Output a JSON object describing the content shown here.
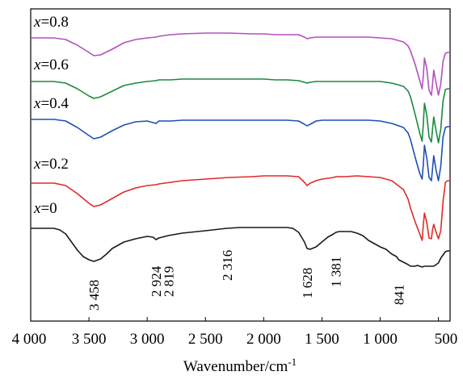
{
  "chart_data": {
    "type": "line",
    "xlabel": "Wavenumber/cm",
    "xlabel_sup": "-1",
    "xlim": [
      4000,
      400
    ],
    "x_ticks": [
      4000,
      3500,
      3000,
      2500,
      2000,
      1500,
      1000,
      500
    ],
    "x_tick_labels": [
      "4 000",
      "3 500",
      "3 000",
      "2 500",
      "2 000",
      "1 500",
      "1 000",
      "500"
    ],
    "ylabel": "",
    "grid": false,
    "legend": "none",
    "series": [
      {
        "name": "x=0.8",
        "label_var": "x",
        "label_val": "=0.8",
        "color": "#b34fc0",
        "baseline": 47,
        "x": [
          4000,
          3800,
          3700,
          3600,
          3500,
          3458,
          3400,
          3300,
          3200,
          3100,
          3000,
          2924,
          2900,
          2800,
          2700,
          2500,
          2300,
          2100,
          2000,
          1900,
          1800,
          1700,
          1650,
          1628,
          1600,
          1550,
          1500,
          1450,
          1400,
          1381,
          1300,
          1200,
          1100,
          1000,
          900,
          800,
          760,
          740,
          700,
          660,
          640,
          630,
          620,
          600,
          580,
          560,
          550,
          540,
          520,
          500,
          480,
          460,
          440,
          420,
          400
        ],
        "y": [
          47,
          47,
          49,
          56,
          65,
          69,
          68,
          61,
          53,
          49,
          47,
          46,
          45,
          43,
          42,
          41,
          41,
          42,
          42,
          43,
          43,
          43,
          46,
          48,
          47,
          46,
          46,
          46,
          46,
          46,
          46,
          46,
          46,
          47,
          48,
          52,
          57,
          63,
          80,
          100,
          110,
          95,
          72,
          85,
          112,
          118,
          103,
          87,
          103,
          118,
          104,
          76,
          66,
          65,
          65
        ]
      },
      {
        "name": "x=0.6",
        "label_var": "x",
        "label_val": "=0.6",
        "color": "#1a8a3c",
        "baseline": 101,
        "x": [
          4000,
          3800,
          3700,
          3600,
          3500,
          3458,
          3400,
          3300,
          3200,
          3100,
          3000,
          2924,
          2900,
          2800,
          2700,
          2500,
          2300,
          2100,
          2000,
          1900,
          1800,
          1700,
          1650,
          1628,
          1600,
          1550,
          1500,
          1450,
          1400,
          1381,
          1300,
          1200,
          1100,
          1000,
          900,
          800,
          760,
          740,
          700,
          660,
          640,
          630,
          620,
          600,
          580,
          560,
          550,
          540,
          520,
          500,
          480,
          460,
          440,
          420,
          400
        ],
        "y": [
          101,
          101,
          103,
          110,
          119,
          122,
          120,
          113,
          106,
          103,
          101,
          100,
          99,
          99,
          98,
          98,
          98,
          98,
          98,
          99,
          99,
          100,
          102,
          103,
          102,
          101,
          101,
          101,
          101,
          101,
          101,
          101,
          101,
          101,
          103,
          107,
          113,
          120,
          142,
          165,
          175,
          155,
          128,
          143,
          170,
          176,
          159,
          145,
          162,
          177,
          160,
          125,
          111,
          110,
          110
        ]
      },
      {
        "name": "x=0.4",
        "label_var": "x",
        "label_val": "=0.4",
        "color": "#1f4fb5",
        "baseline": 148,
        "x": [
          4000,
          3800,
          3700,
          3600,
          3500,
          3458,
          3400,
          3300,
          3200,
          3100,
          3000,
          2924,
          2900,
          2800,
          2700,
          2500,
          2300,
          2100,
          2000,
          1900,
          1800,
          1700,
          1650,
          1628,
          1600,
          1550,
          1500,
          1450,
          1400,
          1381,
          1300,
          1200,
          1100,
          1000,
          900,
          800,
          760,
          740,
          700,
          660,
          640,
          630,
          620,
          600,
          580,
          560,
          550,
          540,
          520,
          500,
          480,
          460,
          440,
          420,
          400
        ],
        "y": [
          148,
          148,
          150,
          158,
          168,
          172,
          170,
          162,
          155,
          151,
          150,
          153,
          150,
          150,
          149,
          149,
          149,
          149,
          149,
          149,
          149,
          150,
          154,
          156,
          154,
          150,
          149,
          149,
          149,
          149,
          149,
          149,
          149,
          150,
          153,
          158,
          165,
          173,
          195,
          215,
          222,
          205,
          180,
          196,
          220,
          224,
          208,
          193,
          211,
          224,
          206,
          170,
          158,
          157,
          157
        ]
      },
      {
        "name": "x=0.2",
        "label_var": "x",
        "label_val": "=0.2",
        "color": "#e02a2a",
        "baseline": 227,
        "x": [
          4000,
          3800,
          3700,
          3600,
          3500,
          3458,
          3400,
          3300,
          3200,
          3100,
          3000,
          2924,
          2900,
          2800,
          2700,
          2500,
          2300,
          2100,
          2000,
          1900,
          1800,
          1700,
          1650,
          1628,
          1600,
          1550,
          1500,
          1450,
          1400,
          1381,
          1300,
          1200,
          1100,
          1000,
          900,
          800,
          760,
          740,
          700,
          660,
          640,
          630,
          620,
          600,
          580,
          560,
          550,
          540,
          520,
          500,
          480,
          460,
          440,
          420,
          400
        ],
        "y": [
          227,
          227,
          230,
          240,
          252,
          256,
          254,
          246,
          238,
          233,
          230,
          229,
          228,
          226,
          224,
          222,
          220,
          219,
          218,
          218,
          218,
          219,
          226,
          230,
          227,
          224,
          222,
          221,
          220,
          219,
          219,
          218,
          219,
          220,
          224,
          235,
          247,
          258,
          275,
          290,
          298,
          280,
          264,
          276,
          295,
          296,
          284,
          278,
          288,
          296,
          286,
          250,
          226,
          224,
          224
        ]
      },
      {
        "name": "x=0",
        "label_var": "x",
        "label_val": "=0",
        "color": "#1a1a1a",
        "baseline": 283,
        "x": [
          4000,
          3900,
          3800,
          3750,
          3700,
          3650,
          3600,
          3550,
          3500,
          3458,
          3400,
          3350,
          3300,
          3200,
          3100,
          3000,
          2950,
          2924,
          2900,
          2819,
          2700,
          2500,
          2316,
          2200,
          2100,
          2000,
          1900,
          1800,
          1750,
          1700,
          1650,
          1628,
          1600,
          1550,
          1500,
          1450,
          1400,
          1381,
          1350,
          1300,
          1250,
          1200,
          1150,
          1100,
          1050,
          1000,
          950,
          900,
          860,
          841,
          800,
          760,
          740,
          700,
          680,
          660,
          640,
          620,
          600,
          580,
          560,
          540,
          520,
          500,
          480,
          460,
          440,
          420,
          400
        ],
        "y": [
          283,
          283,
          283,
          285,
          290,
          300,
          310,
          318,
          322,
          324,
          321,
          315,
          308,
          300,
          296,
          293,
          294,
          297,
          295,
          292,
          289,
          286,
          283,
          282,
          282,
          282,
          282,
          282,
          283,
          288,
          300,
          308,
          309,
          306,
          300,
          294,
          290,
          288,
          287,
          287,
          287,
          289,
          292,
          298,
          302,
          306,
          309,
          315,
          318,
          322,
          325,
          328,
          330,
          330,
          329,
          330,
          331,
          330,
          330,
          330,
          330,
          330,
          328,
          326,
          320,
          316,
          312,
          311,
          311
        ]
      }
    ],
    "annotations": [
      {
        "label": "3 458",
        "x": 3458
      },
      {
        "label": "2 924",
        "x": 2924
      },
      {
        "label": "2 819",
        "x": 2819
      },
      {
        "label": "2 316",
        "x": 2316
      },
      {
        "label": "1 628",
        "x": 1628
      },
      {
        "label": "1 381",
        "x": 1381
      },
      {
        "label": "841",
        "x": 841
      }
    ]
  }
}
